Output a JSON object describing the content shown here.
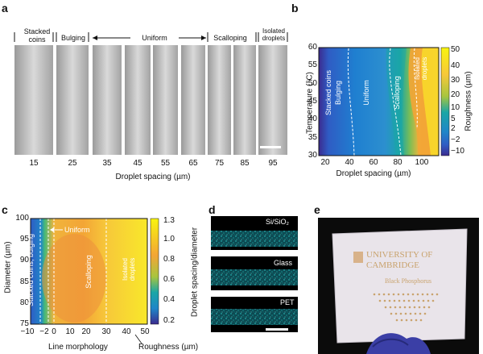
{
  "panels": {
    "a": {
      "label": "a",
      "regime_labels": [
        "Stacked\ncoins",
        "Bulging",
        "Uniform",
        "Scalloping",
        "Isolated\ndroplets"
      ],
      "spacings": [
        "15",
        "25",
        "35",
        "45",
        "55",
        "65",
        "75",
        "85",
        "95"
      ],
      "xlabel": "Droplet spacing (µm)"
    },
    "b": {
      "label": "b",
      "ylabel": "Temperature (°C)",
      "xlabel": "Droplet spacing (µm)",
      "xticks": [
        "20",
        "40",
        "60",
        "80",
        "100"
      ],
      "yticks": [
        "30",
        "35",
        "40",
        "45",
        "50",
        "55",
        "60"
      ],
      "regions": [
        "Stacked coins",
        "Bulging",
        "Uniform",
        "Scalloping",
        "Isolated\ndroplets"
      ],
      "colorbar_label": "Roughness (µm)",
      "colorbar_ticks": [
        "50",
        "40",
        "30",
        "20",
        "10",
        "5",
        "2",
        "−2",
        "−10"
      ]
    },
    "c": {
      "label": "c",
      "ylabel": "Diameter (µm)",
      "yticks": [
        "100",
        "95",
        "90",
        "85",
        "80",
        "75"
      ],
      "xticks": [
        "−10",
        "−2",
        "0",
        "10",
        "20",
        "30",
        "40",
        "50"
      ],
      "xlabel_left": "Line morphology",
      "xlabel_right": "Roughness (µm)",
      "regions": [
        "Stacked coins, bulging",
        "Uniform",
        "Scalloping",
        "Isolated\ndroplets"
      ],
      "colorbar_label": "Droplet spacing/diameter",
      "colorbar_ticks": [
        "1.3",
        "1.0",
        "0.8",
        "0.6",
        "0.4",
        "0.2"
      ]
    },
    "d": {
      "label": "d",
      "substrates": [
        "Si/SiO₂",
        "Glass",
        "PET"
      ]
    },
    "e": {
      "label": "e",
      "logo_text": [
        "UNIVERSITY OF",
        "CAMBRIDGE"
      ],
      "sub_text": "Black Phosphorus"
    }
  },
  "colors": {
    "colormap": [
      "#3b2b8f",
      "#2f5cc4",
      "#1f86c8",
      "#1aa6a6",
      "#44b97a",
      "#a8c53e",
      "#f0b43c",
      "#f7cf33",
      "#f8f40e"
    ],
    "ink": "#0fa6a6"
  }
}
